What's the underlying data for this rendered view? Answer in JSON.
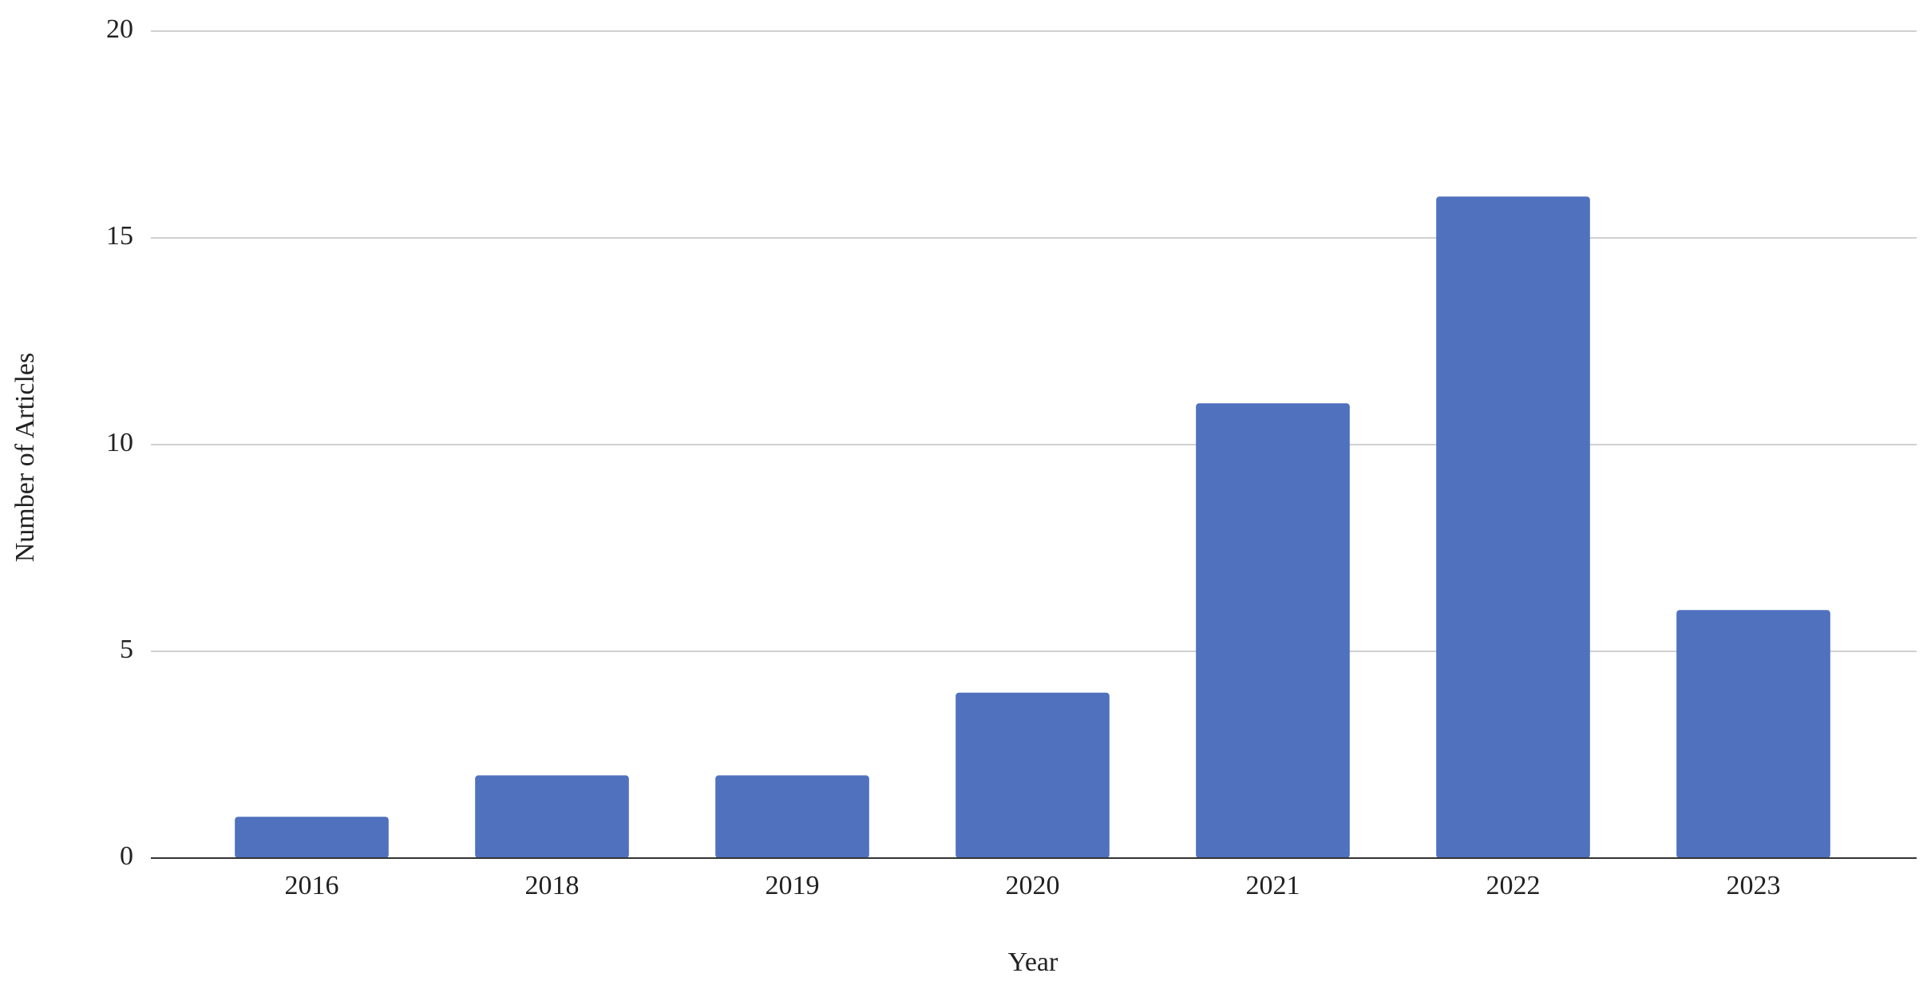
{
  "chart_data": {
    "type": "bar",
    "x_label": "Year",
    "y_label": "Number of Articles",
    "categories": [
      "2016",
      "2018",
      "2019",
      "2020",
      "2021",
      "2022",
      "2023"
    ],
    "values": [
      1,
      2,
      2,
      4,
      11,
      16,
      6
    ],
    "color": "#4f71be",
    "ylim": [
      0,
      20
    ],
    "yticks": [
      0,
      5,
      10,
      15,
      20
    ],
    "grid": true
  }
}
